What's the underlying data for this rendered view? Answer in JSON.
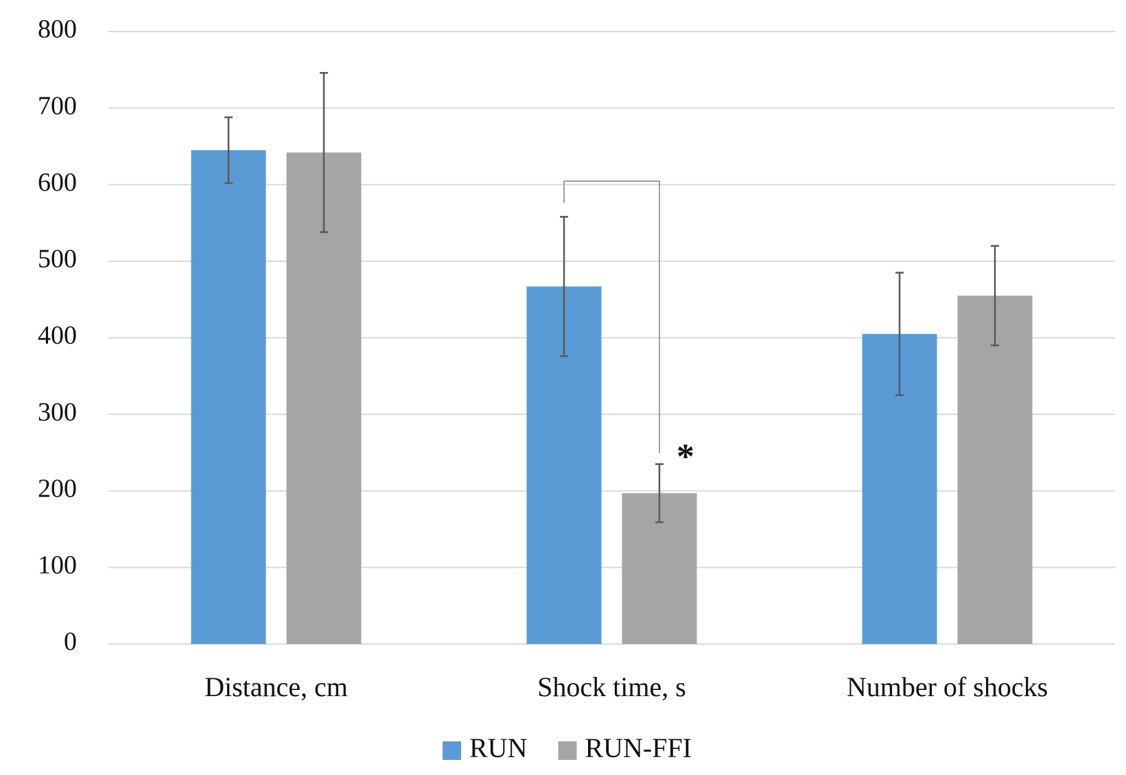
{
  "chart_data": {
    "type": "bar",
    "categories": [
      "Distance, cm",
      "Shock time, s",
      "Number of shocks"
    ],
    "series": [
      {
        "name": "RUN",
        "color": "#5b9bd5",
        "values": [
          645,
          467,
          405
        ],
        "errors": [
          43,
          91,
          80
        ]
      },
      {
        "name": "RUN-FFI",
        "color": "#a5a5a5",
        "values": [
          642,
          197,
          455
        ],
        "errors": [
          104,
          38,
          65
        ]
      }
    ],
    "ylim": [
      0,
      800
    ],
    "yticks": [
      0,
      100,
      200,
      300,
      400,
      500,
      600,
      700,
      800
    ],
    "grid": true,
    "legend": "bottom",
    "annotation": "*"
  }
}
